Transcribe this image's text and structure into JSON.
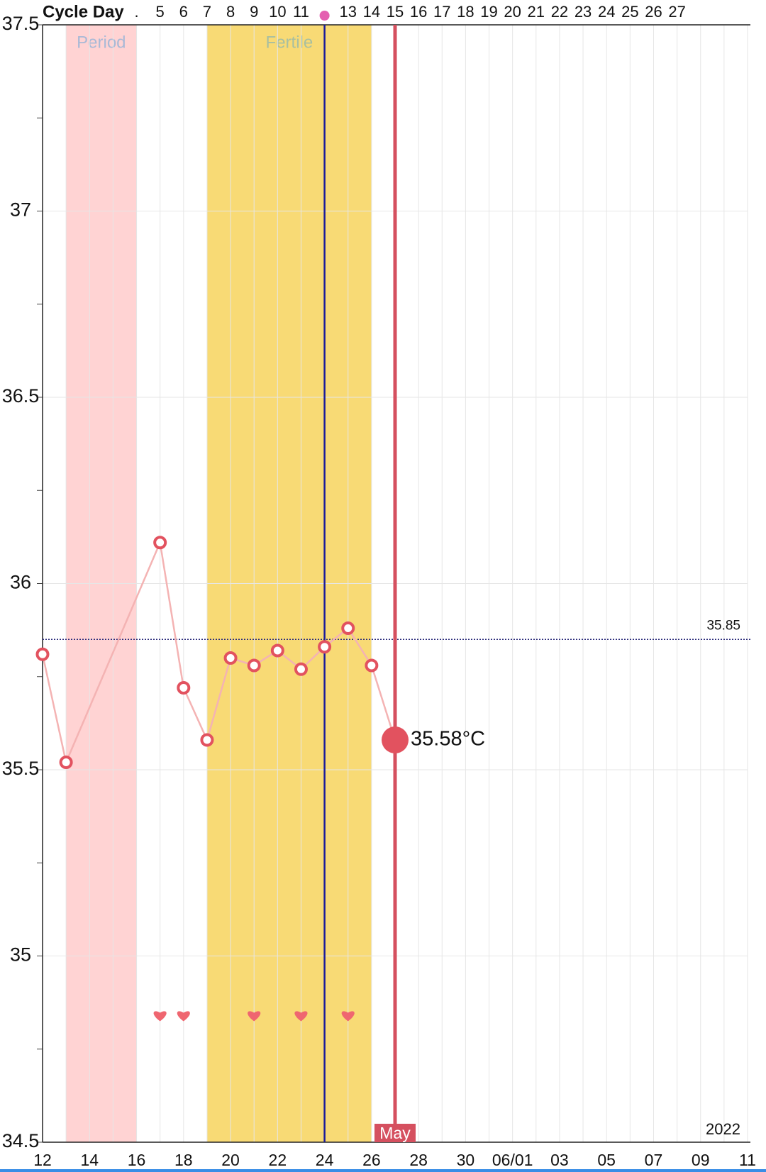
{
  "chart_data": {
    "type": "line",
    "cycle_day_title": "Cycle Day",
    "categories": [
      "12",
      null,
      "14",
      null,
      "16",
      null,
      "18",
      null,
      "20",
      null,
      "22",
      null,
      "24",
      null,
      "26",
      null,
      "28",
      null,
      "30",
      null,
      "06/01",
      null,
      "03",
      null,
      "05",
      null,
      "07",
      null,
      "09",
      null,
      "11"
    ],
    "cycle_days": [
      null,
      null,
      null,
      null,
      ".",
      "5",
      "6",
      "7",
      "8",
      "9",
      "10",
      "11",
      null,
      "13",
      "14",
      "15",
      "16",
      "17",
      "18",
      "19",
      "20",
      "21",
      "22",
      "23",
      "24",
      "25",
      "26",
      "27",
      null,
      null,
      null
    ],
    "series": [
      {
        "name": "Temperature",
        "color": "#f4b3b3",
        "point_color": "#e2525f",
        "values": [
          35.81,
          35.52,
          null,
          null,
          null,
          36.11,
          35.72,
          35.58,
          35.8,
          35.78,
          35.82,
          35.77,
          35.83,
          35.88,
          35.78,
          35.58,
          null,
          null,
          null,
          null,
          null,
          null,
          null,
          null,
          null,
          null,
          null,
          null,
          null,
          null,
          null
        ],
        "value_labels": [
          null,
          null,
          null,
          null,
          null,
          null,
          null,
          null,
          null,
          null,
          null,
          null,
          null,
          null,
          null,
          "35.58°C",
          null,
          null,
          null,
          null,
          null,
          null,
          null,
          null,
          null,
          null,
          null,
          null,
          null,
          null,
          null
        ]
      }
    ],
    "ylim": [
      34.5,
      37.5
    ],
    "yticks": [
      34.5,
      35,
      35.5,
      36,
      36.5,
      37,
      37.5
    ],
    "yminor": [
      34.75,
      35.25,
      35.75,
      36.25,
      36.75,
      37.25
    ],
    "grid": true,
    "coverline": {
      "value": 35.85,
      "label": "35.85"
    },
    "bands": [
      {
        "label": "Period",
        "start": 1,
        "end": 4,
        "color": "#ffd3d3"
      },
      {
        "label": "Fertile",
        "start": 7,
        "end": 14,
        "color": "#f8da75"
      }
    ],
    "ovulation_index": 12,
    "today_index": 15,
    "month_label": "May",
    "year_label": "2022",
    "hearts": [
      5,
      6,
      9,
      11,
      13
    ],
    "heart_value": 34.84
  }
}
